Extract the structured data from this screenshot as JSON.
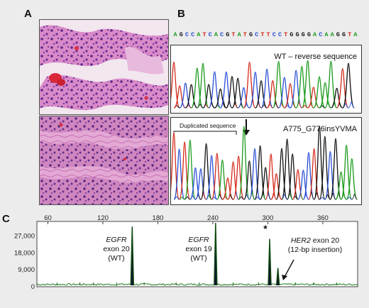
{
  "panels": {
    "a": "A",
    "b": "B",
    "c": "C"
  },
  "sequence": [
    "A",
    "G",
    "C",
    "C",
    "A",
    "T",
    "C",
    "A",
    "C",
    "G",
    "T",
    "A",
    "T",
    "G",
    "C",
    "T",
    "T",
    "C",
    "C",
    "T",
    "G",
    "G",
    "G",
    "G",
    "A",
    "C",
    "A",
    "A",
    "G",
    "G",
    "T",
    "A"
  ],
  "base_colors": {
    "A": "#1a9a1a",
    "G": "#111111",
    "C": "#2a4fd6",
    "T": "#d42a1a"
  },
  "trace_top": {
    "label": "WT – reverse sequence"
  },
  "trace_bottom": {
    "label": "A775_G776insYVMA",
    "duplicated_label": "Duplicated sequence"
  },
  "chart_data": {
    "type": "line",
    "x_ticks": [
      60,
      120,
      180,
      240,
      300,
      360
    ],
    "y_ticks": [
      "0",
      "9,000",
      "18,000",
      "27,000"
    ],
    "xlim": [
      48,
      398
    ],
    "ylim": [
      0,
      34000
    ],
    "peaks": [
      {
        "x": 152,
        "y": 32000
      },
      {
        "x": 243,
        "y": 36000
      },
      {
        "x": 302,
        "y": 25500
      },
      {
        "x": 311,
        "y": 10000
      }
    ],
    "annotations": [
      {
        "gene": "EGFR",
        "text": "exon 20",
        "note": "(WT)"
      },
      {
        "gene": "EGFR",
        "text": "exon 19",
        "note": "(WT)"
      },
      {
        "gene": "HER2",
        "text": "exon 20",
        "note": "(12-bp insertion)"
      },
      {
        "gene": "",
        "text": "*",
        "note": ""
      }
    ]
  }
}
